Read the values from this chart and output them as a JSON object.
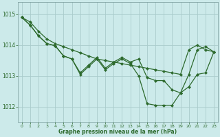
{
  "xlabel": "Graphe pression niveau de la mer (hPa)",
  "background_color": "#cceaea",
  "grid_color": "#aacccc",
  "line_color": "#2d6a2d",
  "xlim": [
    -0.5,
    23.5
  ],
  "ylim": [
    1011.5,
    1015.4
  ],
  "yticks": [
    1012,
    1013,
    1014,
    1015
  ],
  "xticks": [
    0,
    1,
    2,
    3,
    4,
    5,
    6,
    7,
    8,
    9,
    10,
    11,
    12,
    13,
    14,
    15,
    16,
    17,
    18,
    19,
    20,
    21,
    22,
    23
  ],
  "hours": [
    0,
    1,
    2,
    3,
    4,
    5,
    6,
    7,
    8,
    9,
    10,
    11,
    12,
    13,
    14,
    15,
    16,
    17,
    18,
    19,
    20,
    21,
    22,
    23
  ],
  "line_top": [
    1014.9,
    1014.75,
    1014.45,
    1014.2,
    1014.05,
    1013.95,
    1013.85,
    1013.75,
    1013.65,
    1013.55,
    1013.5,
    1013.45,
    1013.4,
    1013.35,
    1013.3,
    1013.25,
    1013.2,
    1013.15,
    1013.1,
    1013.05,
    1013.85,
    1014.0,
    1013.85,
    1013.78
  ],
  "line_mid": [
    1014.9,
    1014.65,
    1014.3,
    1014.05,
    1013.98,
    1013.65,
    1013.55,
    1013.1,
    1013.35,
    1013.6,
    1013.25,
    1013.45,
    1013.6,
    1013.45,
    1013.55,
    1012.95,
    1012.85,
    1012.85,
    1012.55,
    1012.45,
    1013.05,
    1013.85,
    1013.95,
    1013.78
  ],
  "line_bot": [
    1014.9,
    1014.65,
    1014.3,
    1014.05,
    1013.98,
    1013.65,
    1013.55,
    1013.05,
    1013.3,
    1013.55,
    1013.2,
    1013.4,
    1013.55,
    1013.4,
    1013.0,
    1012.1,
    1012.05,
    1012.05,
    1012.05,
    1012.45,
    1012.65,
    1013.05,
    1013.1,
    1013.78
  ]
}
